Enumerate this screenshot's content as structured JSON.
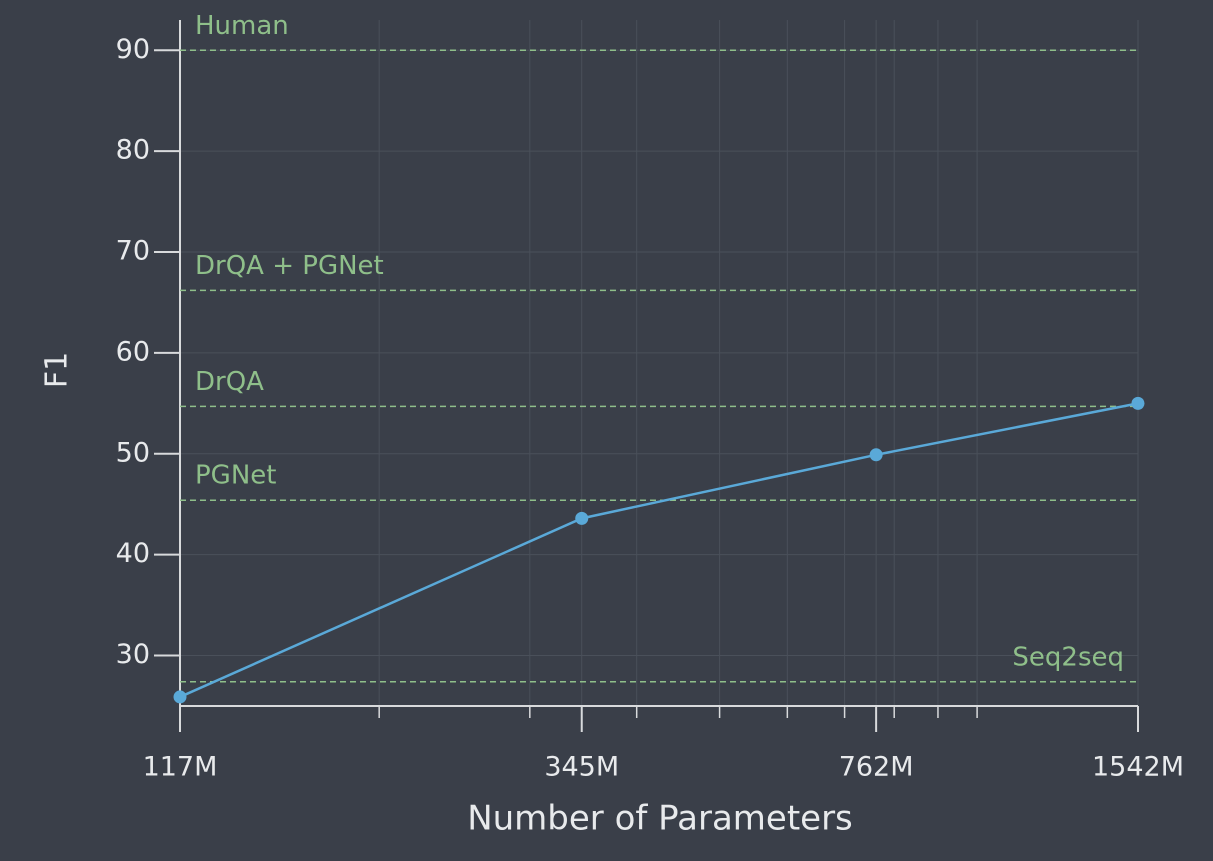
{
  "chart_data": {
    "type": "line",
    "x_label": "Number of Parameters",
    "y_label": "F1",
    "x_scale": "log",
    "x": [
      117,
      345,
      762,
      1542
    ],
    "series": [
      {
        "color": "#5aa9d8",
        "values": [
          25.9,
          43.6,
          49.9,
          55.0
        ]
      }
    ],
    "xlim": [
      117,
      1542
    ],
    "xticks": [
      {
        "value": 117,
        "label": "117M"
      },
      {
        "value": 345,
        "label": "345M"
      },
      {
        "value": 762,
        "label": "762M"
      },
      {
        "value": 1542,
        "label": "1542M"
      }
    ],
    "xminor_ticks": [
      200,
      300,
      400,
      500,
      600,
      700,
      800,
      900,
      1000
    ],
    "ylim": [
      25,
      93
    ],
    "yticks": [
      30,
      40,
      50,
      60,
      70,
      80,
      90
    ],
    "grid": true,
    "reference_lines": [
      {
        "label": "Human",
        "value": 90,
        "label_align": "left"
      },
      {
        "label": "DrQA + PGNet",
        "value": 66.2,
        "label_align": "left"
      },
      {
        "label": "DrQA",
        "value": 54.7,
        "label_align": "left"
      },
      {
        "label": "PGNet",
        "value": 45.4,
        "label_align": "left"
      },
      {
        "label": "Seq2seq",
        "value": 27.4,
        "label_align": "right"
      }
    ],
    "reference_color": "#8fbf8a"
  }
}
